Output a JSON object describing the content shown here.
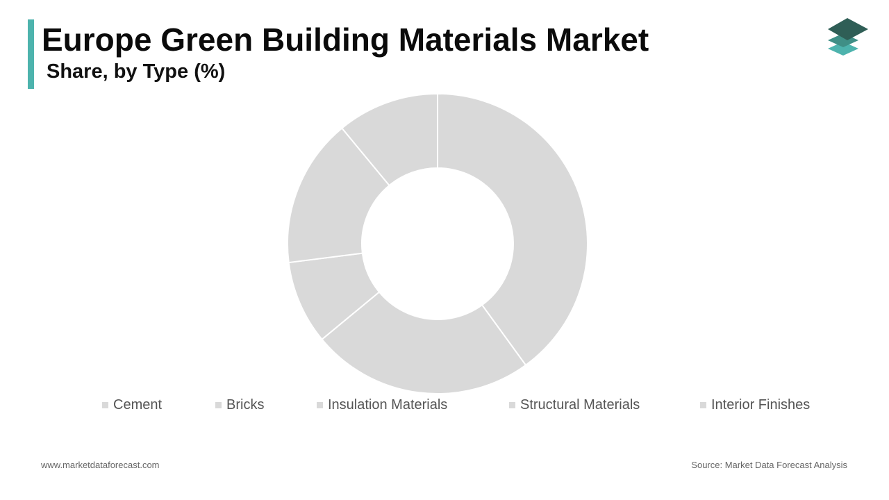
{
  "header": {
    "title": "Europe Green Building Materials Market",
    "subtitle": "Share, by Type (%)"
  },
  "brand": {
    "logo_icon": "stacked-layers-icon",
    "accent_color": "#4db3ad"
  },
  "chart_data": {
    "type": "pie",
    "style": "donut",
    "title": "Europe Green Building Materials Market",
    "subtitle": "Share, by Type (%)",
    "categories": [
      "Cement",
      "Bricks",
      "Insulation Materials",
      "Structural Materials",
      "Interior Finishes"
    ],
    "values": [
      40,
      24,
      9,
      16,
      11
    ],
    "units": "%",
    "legend_position": "bottom",
    "slice_color": "#d9d9d9",
    "swatch_color": "#d9d9d9",
    "separator_color": "#ffffff"
  },
  "footer": {
    "website": "www.marketdataforecast.com",
    "source": "Source: Market Data Forecast Analysis"
  }
}
